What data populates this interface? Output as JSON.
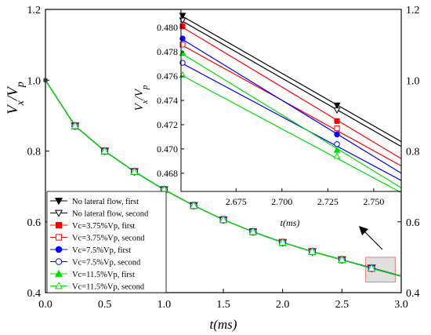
{
  "chart_data": [
    {
      "type": "line",
      "xlabel": "t(ms)",
      "ylabel": "V_x/V_p",
      "xlim": [
        0,
        3
      ],
      "ylim": [
        0.4,
        1.2
      ],
      "x_ticks": [
        "0.0",
        "0.5",
        "1.0",
        "1.5",
        "2.0",
        "2.5",
        "3.0"
      ],
      "y_ticks": [
        "0.4",
        "0.6",
        "0.8",
        "1.0",
        "1.2"
      ],
      "right_axis_ticks": [
        "0.4",
        "0.6",
        "0.8",
        "1.0",
        "1.2"
      ],
      "grid": false,
      "legend_position": "lower-left",
      "x": [
        0,
        0.25,
        0.5,
        0.75,
        1.0,
        1.25,
        1.5,
        1.75,
        2.0,
        2.25,
        2.5,
        2.75,
        3.0
      ],
      "series": [
        {
          "name": "No lateral flow, first",
          "color": "#000000",
          "marker": "triangle-down-filled",
          "values": [
            1.0,
            0.871,
            0.8,
            0.742,
            0.691,
            0.646,
            0.606,
            0.572,
            0.542,
            0.516,
            0.493,
            0.47,
            0.447
          ]
        },
        {
          "name": "No lateral flow, second",
          "color": "#000000",
          "marker": "triangle-down-open",
          "values": [
            1.0,
            0.871,
            0.8,
            0.742,
            0.691,
            0.646,
            0.606,
            0.572,
            0.542,
            0.516,
            0.493,
            0.47,
            0.447
          ]
        },
        {
          "name": "Vc=3.75%Vp, first",
          "color": "#ff0000",
          "marker": "square-filled",
          "values": [
            1.0,
            0.871,
            0.8,
            0.742,
            0.691,
            0.646,
            0.606,
            0.572,
            0.542,
            0.516,
            0.493,
            0.469,
            0.446
          ]
        },
        {
          "name": "Vc=3.75%Vp, second",
          "color": "#ff0000",
          "marker": "square-open",
          "values": [
            1.0,
            0.871,
            0.8,
            0.742,
            0.691,
            0.646,
            0.606,
            0.572,
            0.542,
            0.516,
            0.493,
            0.469,
            0.446
          ]
        },
        {
          "name": "Vc=7.5%Vp,  first",
          "color": "#0000ff",
          "marker": "circle-filled",
          "values": [
            1.0,
            0.871,
            0.8,
            0.742,
            0.691,
            0.646,
            0.606,
            0.572,
            0.542,
            0.516,
            0.493,
            0.469,
            0.446
          ]
        },
        {
          "name": "Vc=7.5%Vp,  second",
          "color": "#0000ff",
          "marker": "circle-open",
          "values": [
            1.0,
            0.871,
            0.8,
            0.742,
            0.691,
            0.646,
            0.606,
            0.572,
            0.542,
            0.516,
            0.493,
            0.469,
            0.446
          ]
        },
        {
          "name": "Vc=11.5%Vp, first",
          "color": "#00dd00",
          "marker": "triangle-up-filled",
          "values": [
            1.0,
            0.871,
            0.8,
            0.742,
            0.691,
            0.646,
            0.606,
            0.572,
            0.542,
            0.516,
            0.493,
            0.469,
            0.446
          ]
        },
        {
          "name": "Vc=11.5%Vp, second",
          "color": "#00dd00",
          "marker": "triangle-up-open",
          "values": [
            1.0,
            0.871,
            0.8,
            0.742,
            0.691,
            0.646,
            0.606,
            0.572,
            0.542,
            0.516,
            0.493,
            0.469,
            0.446
          ]
        }
      ],
      "highlight_region": {
        "x": [
          2.7,
          2.95
        ],
        "y": [
          0.43,
          0.5
        ]
      }
    },
    {
      "type": "line",
      "title": "",
      "xlabel": "t(ms)",
      "ylabel": "V_x/V_p",
      "xlim": [
        2.645,
        2.765
      ],
      "ylim": [
        0.4665,
        0.4815
      ],
      "x_ticks": [
        "2.675",
        "2.700",
        "2.725",
        "2.750"
      ],
      "y_ticks": [
        "0.468",
        "0.470",
        "0.472",
        "0.474",
        "0.476",
        "0.478",
        "0.480"
      ],
      "grid": false,
      "marker_x": [
        2.645,
        2.73
      ],
      "series": [
        {
          "name": "No lateral flow, first",
          "color": "#000000",
          "x": [
            2.645,
            2.765
          ],
          "values": [
            0.481,
            0.4706
          ],
          "marker_values": [
            0.481,
            0.4736
          ]
        },
        {
          "name": "No lateral flow, second",
          "color": "#000000",
          "x": [
            2.645,
            2.765
          ],
          "values": [
            0.4806,
            0.4702
          ],
          "marker_values": [
            0.4806,
            0.4732
          ]
        },
        {
          "name": "Vc=3.75%Vp, first",
          "color": "#ff0000",
          "x": [
            2.645,
            2.765
          ],
          "values": [
            0.4801,
            0.4692
          ],
          "marker_values": [
            0.4801,
            0.4723
          ]
        },
        {
          "name": "Vc=3.75%Vp, second",
          "color": "#ff0000",
          "x": [
            2.645,
            2.765
          ],
          "values": [
            0.4786,
            0.4686
          ],
          "marker_values": [
            0.4786,
            0.4717
          ]
        },
        {
          "name": "Vc=7.5%Vp,  first",
          "color": "#0000ff",
          "x": [
            2.645,
            2.765
          ],
          "values": [
            0.4791,
            0.468
          ],
          "marker_values": [
            0.4791,
            0.4712
          ]
        },
        {
          "name": "Vc=7.5%Vp,  second",
          "color": "#0000ff",
          "x": [
            2.645,
            2.765
          ],
          "values": [
            0.4771,
            0.4674
          ],
          "marker_values": [
            0.4771,
            0.4704
          ]
        },
        {
          "name": "Vc=11.5%Vp, first",
          "color": "#00dd00",
          "x": [
            2.645,
            2.765
          ],
          "values": [
            0.4779,
            0.4668
          ],
          "marker_values": [
            0.4779,
            0.4699
          ]
        },
        {
          "name": "Vc=11.5%Vp, second",
          "color": "#00dd00",
          "x": [
            2.645,
            2.765
          ],
          "values": [
            0.4761,
            0.4664
          ],
          "marker_values": [
            0.4761,
            0.4694
          ]
        }
      ]
    }
  ]
}
